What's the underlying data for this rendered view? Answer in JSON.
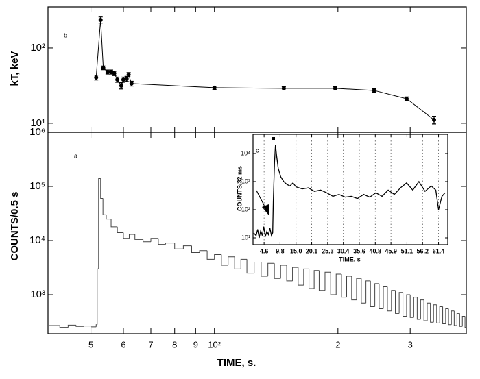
{
  "chart_data": [
    {
      "type": "scatter",
      "panel_label": "b",
      "y_label": "kT, keV",
      "xlog": true,
      "ylog": true,
      "color": "#000000",
      "connect": true,
      "xlim": [
        39.3,
        411
      ],
      "xticks": [
        50,
        60,
        70,
        80,
        90,
        100,
        200,
        300
      ],
      "ylim": [
        7.6,
        351
      ],
      "yticks": [
        {
          "value": 10,
          "label": "10¹"
        },
        {
          "value": 100,
          "label": "10²"
        }
      ],
      "x": [
        51.5,
        52.8,
        53.6,
        54.9,
        56,
        57,
        58,
        59.3,
        60,
        61.1,
        61.8,
        62.8,
        100,
        147.6,
        197,
        245,
        294,
        343
      ],
      "values": [
        40.6,
        236,
        54.5,
        48,
        48,
        46,
        38,
        31.6,
        38,
        39,
        44.2,
        33.7,
        29.7,
        29.1,
        29.1,
        27.3,
        21.2,
        11.1
      ],
      "errors": [
        3,
        22,
        3,
        3,
        3,
        3,
        3,
        3,
        3,
        3,
        3,
        2.5,
        1.5,
        1.5,
        1.5,
        1.5,
        1.2,
        1.3
      ]
    },
    {
      "type": "step",
      "panel_label": "a",
      "y_label": "COUNTS/0.5 s",
      "x_label": "TIME, s.",
      "xlog": true,
      "ylog": true,
      "color": "#444444",
      "xlim": [
        39.3,
        411
      ],
      "xticks": [
        {
          "value": 50,
          "label": "5"
        },
        {
          "value": 60,
          "label": "6"
        },
        {
          "value": 70,
          "label": "7"
        },
        {
          "value": 80,
          "label": "8"
        },
        {
          "value": 90,
          "label": "9"
        },
        {
          "value": 100,
          "label": "10²"
        },
        {
          "value": 200,
          "label": "2"
        },
        {
          "value": 300,
          "label": "3"
        }
      ],
      "ylim": [
        190,
        1000000
      ],
      "yticks": [
        {
          "value": 1000,
          "label": "10³"
        },
        {
          "value": 10000,
          "label": "10⁴"
        },
        {
          "value": 100000,
          "label": "10⁵"
        },
        {
          "value": 1000000,
          "label": "10⁶"
        }
      ],
      "x": [
        39.5,
        42,
        44,
        46,
        48,
        50,
        51.5,
        51.8,
        52.2,
        52.8,
        53.5,
        54.5,
        56,
        58,
        60,
        62,
        64,
        67,
        70,
        73,
        76,
        80,
        84,
        88,
        92,
        96,
        100,
        104,
        108,
        112,
        116,
        120,
        125,
        130,
        135,
        140,
        145,
        150,
        155,
        160,
        165,
        170,
        175,
        180,
        186,
        192,
        198,
        204,
        210,
        216,
        222,
        228,
        234,
        240,
        246,
        252,
        258,
        264,
        270,
        276,
        282,
        288,
        294,
        300,
        306,
        312,
        318,
        324,
        330,
        336,
        342,
        348,
        354,
        360,
        366,
        372,
        378,
        384,
        390,
        396,
        402,
        408
      ],
      "values": [
        270,
        250,
        275,
        260,
        265,
        255,
        280,
        3000,
        140000,
        60000,
        30000,
        25000,
        18000,
        14000,
        11000,
        13000,
        10500,
        9500,
        11000,
        8500,
        9000,
        7000,
        8000,
        6000,
        6500,
        4500,
        5500,
        3500,
        5000,
        3000,
        4500,
        2500,
        4000,
        2200,
        3800,
        2000,
        3500,
        1800,
        3200,
        1500,
        3000,
        1300,
        2800,
        1200,
        2600,
        1000,
        2400,
        900,
        2200,
        800,
        2000,
        700,
        1800,
        600,
        1600,
        550,
        1400,
        500,
        1200,
        450,
        1100,
        400,
        1000,
        380,
        900,
        350,
        800,
        330,
        700,
        310,
        650,
        300,
        600,
        290,
        550,
        280,
        500,
        270,
        450,
        260,
        400,
        250
      ]
    },
    {
      "type": "line",
      "panel_label": "c",
      "y_label": "COUNTS/32 ms",
      "x_label": "TIME, s",
      "xlog": false,
      "ylog": true,
      "color": "#000000",
      "grid": true,
      "xlim": [
        1.0,
        64.4
      ],
      "xticks": [
        4.6,
        9.8,
        {
          "value": 15,
          "label": "15.0"
        },
        20.1,
        25.3,
        30.4,
        35.6,
        40.8,
        45.9,
        51.1,
        56.2,
        61.4
      ],
      "ylim": [
        5.7,
        48000
      ],
      "yticks": [
        {
          "value": 10,
          "label": "10¹"
        },
        {
          "value": 100,
          "label": "10²"
        },
        {
          "value": 1000,
          "label": "10³"
        },
        {
          "value": 10000,
          "label": "10⁴"
        }
      ],
      "x": [
        1.2,
        2,
        2.5,
        3,
        3.5,
        4,
        4.5,
        5,
        5.5,
        6,
        6.5,
        7,
        7.4,
        7.6,
        8.0,
        8.3,
        8.7,
        9.2,
        10,
        11,
        12,
        13,
        14,
        15,
        17,
        19,
        21,
        23,
        25,
        27,
        29,
        31,
        33,
        35,
        37,
        39,
        41,
        43,
        45,
        47,
        49,
        51,
        53,
        55,
        57,
        59,
        60.5,
        61.4,
        62.5,
        63.5
      ],
      "values": [
        15,
        12,
        20,
        10,
        18,
        12,
        25,
        11,
        17,
        13,
        22,
        12,
        15,
        200,
        5000,
        20000,
        8000,
        3000,
        1500,
        1000,
        800,
        700,
        900,
        650,
        550,
        600,
        450,
        500,
        400,
        300,
        350,
        280,
        300,
        250,
        350,
        280,
        400,
        300,
        500,
        350,
        600,
        900,
        500,
        1000,
        450,
        700,
        500,
        100,
        300,
        400
      ]
    }
  ]
}
